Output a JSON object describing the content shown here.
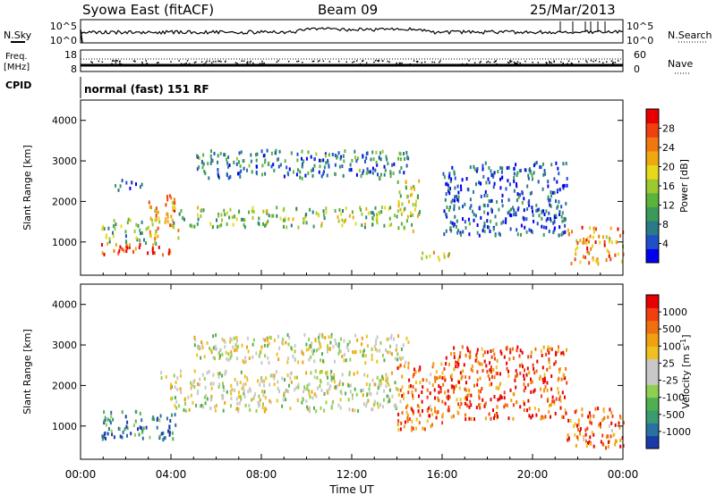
{
  "header": {
    "station": "Syowa East (fitACF)",
    "beam": "Beam 09",
    "date": "25/Mar/2013"
  },
  "side_labels": {
    "nsky": "N.Sky",
    "nsearch": "N.Search",
    "freq": "Freq.",
    "freq_unit": "[MHz]",
    "nave": "Nave",
    "cpid": "CPID",
    "cpid_value": "normal (fast) 151 RF"
  },
  "noise_axes": {
    "left_top": "10^5",
    "left_bottom": "10^0",
    "right_top": "10^5",
    "right_bottom": "10^0"
  },
  "freq_axes": {
    "left_ticks": [
      "18",
      "8"
    ],
    "right_ticks": [
      "60",
      "0"
    ]
  },
  "chart_data": [
    {
      "type": "heatmap",
      "title": "",
      "xlabel": "",
      "ylabel": "Slant Range [km]",
      "x_range_hours": [
        0,
        24
      ],
      "ylim": [
        180,
        4500
      ],
      "y_ticks": [
        "1000",
        "2000",
        "3000",
        "4000"
      ],
      "colorbar": {
        "label": "Power [dB]",
        "ticks": [
          "4",
          "8",
          "12",
          "16",
          "20",
          "24",
          "28"
        ],
        "colors": [
          "#0000ee",
          "#2050c8",
          "#2a7a8a",
          "#3a9a5a",
          "#5ab33a",
          "#9cc830",
          "#e8d81a",
          "#f0a810",
          "#f07810",
          "#f04010",
          "#e80000"
        ]
      },
      "scatter_regions": [
        {
          "t": [
            0.9,
            4.2
          ],
          "r": [
            700,
            1000
          ],
          "level": 0.85
        },
        {
          "t": [
            0.9,
            3.5
          ],
          "r": [
            1000,
            1600
          ],
          "level": 0.4
        },
        {
          "t": [
            3.0,
            4.3
          ],
          "r": [
            1100,
            2200
          ],
          "level": 0.7
        },
        {
          "t": [
            4.0,
            14.0
          ],
          "r": [
            1400,
            1900
          ],
          "level": 0.45
        },
        {
          "t": [
            5.0,
            14.5
          ],
          "r": [
            2600,
            3300
          ],
          "level": 0.25
        },
        {
          "t": [
            14.0,
            15.0
          ],
          "r": [
            1300,
            2600
          ],
          "level": 0.5
        },
        {
          "t": [
            15.0,
            16.5
          ],
          "r": [
            600,
            800
          ],
          "level": 0.6
        },
        {
          "t": [
            16.0,
            21.5
          ],
          "r": [
            1200,
            3000
          ],
          "level": 0.15
        },
        {
          "t": [
            21.5,
            24.0
          ],
          "r": [
            500,
            1400
          ],
          "level": 0.75
        },
        {
          "t": [
            1.5,
            3.0
          ],
          "r": [
            2300,
            2600
          ],
          "level": 0.2
        }
      ]
    },
    {
      "type": "heatmap",
      "title": "",
      "xlabel": "Time UT",
      "ylabel": "Slant Range [km]",
      "x_range_hours": [
        0,
        24
      ],
      "x_ticks": [
        "00:00",
        "04:00",
        "08:00",
        "12:00",
        "16:00",
        "20:00",
        "00:00"
      ],
      "ylim": [
        180,
        4500
      ],
      "y_ticks": [
        "1000",
        "2000",
        "3000",
        "4000"
      ],
      "colorbar": {
        "label": "Velocity [m s^-1]",
        "ticks": [
          "1000",
          "500",
          "100",
          "25",
          "-25",
          "-100",
          "-500",
          "-1000"
        ],
        "colors": [
          "#1a3aa8",
          "#2a70a0",
          "#3a9a70",
          "#50b050",
          "#90d050",
          "#c8c8c8",
          "#c8c8c8",
          "#f0c020",
          "#f0a010",
          "#f07010",
          "#f04010",
          "#e80000"
        ]
      },
      "scatter_regions": [
        {
          "t": [
            0.9,
            4.2
          ],
          "r": [
            700,
            1400
          ],
          "level": 0.15
        },
        {
          "t": [
            3.5,
            14.0
          ],
          "r": [
            1400,
            2400
          ],
          "level": 0.5
        },
        {
          "t": [
            5.0,
            14.5
          ],
          "r": [
            2600,
            3300
          ],
          "level": 0.5
        },
        {
          "t": [
            14.0,
            16.0
          ],
          "r": [
            900,
            2600
          ],
          "level": 0.8
        },
        {
          "t": [
            16.0,
            21.5
          ],
          "r": [
            1200,
            3000
          ],
          "level": 0.85
        },
        {
          "t": [
            21.5,
            24.0
          ],
          "r": [
            500,
            1500
          ],
          "level": 0.8
        }
      ]
    }
  ]
}
